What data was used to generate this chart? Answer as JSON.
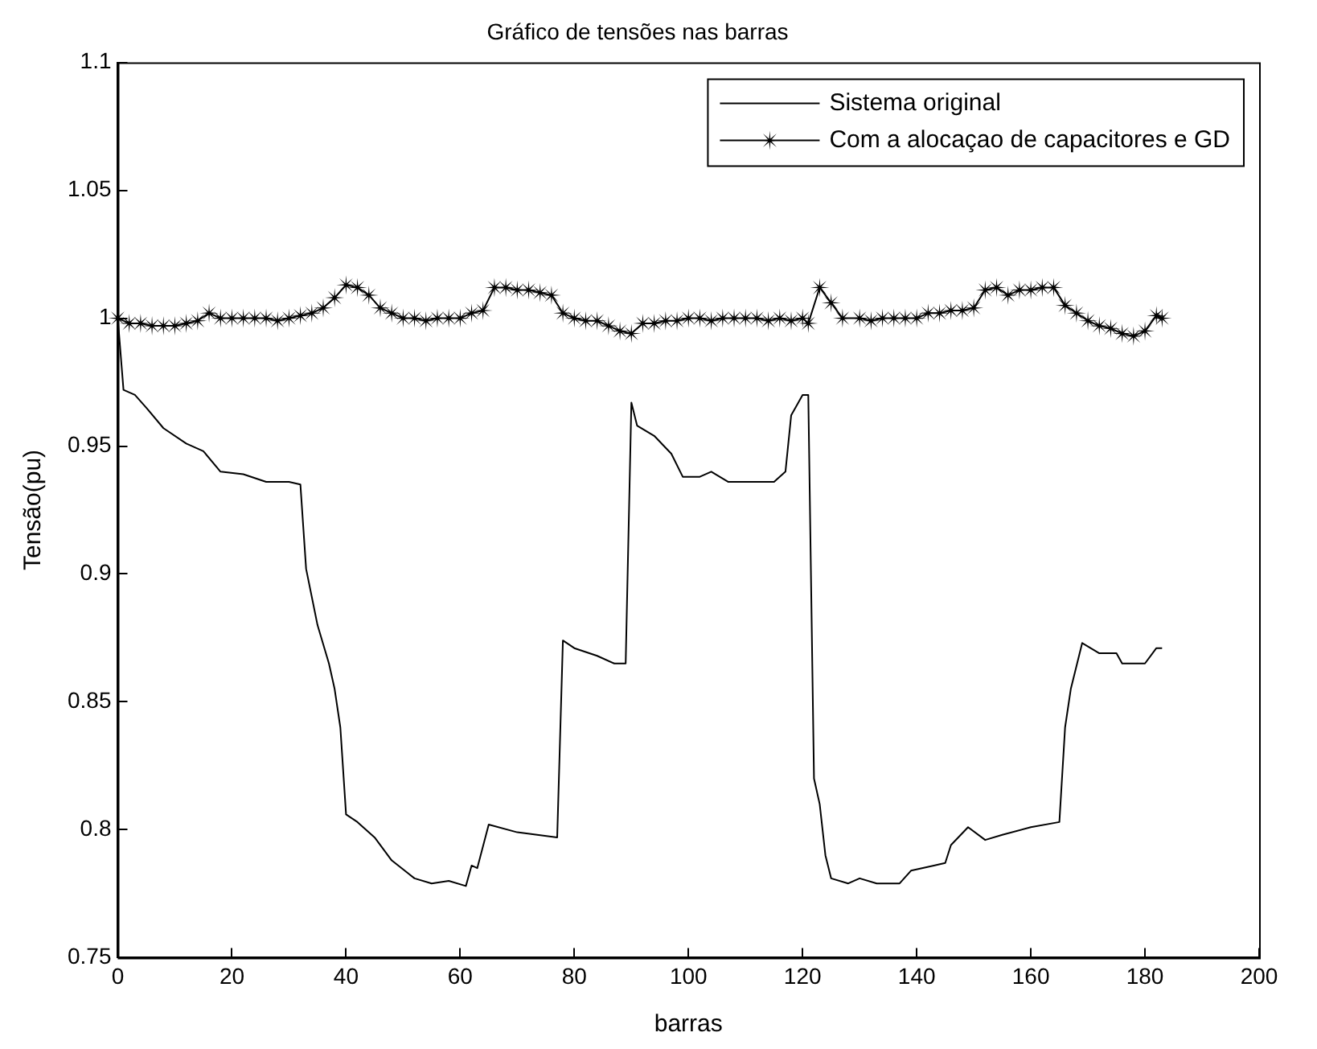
{
  "chart_data": {
    "type": "line",
    "title": "Gráfico de tensões nas barras",
    "xlabel": "barras",
    "ylabel": "Tensão(pu)",
    "xlim": [
      0,
      200
    ],
    "xticks": [
      0,
      20,
      40,
      60,
      80,
      100,
      120,
      140,
      160,
      180,
      200
    ],
    "ylim": [
      0.75,
      1.1
    ],
    "yticks": [
      0.75,
      0.8,
      0.85,
      0.9,
      0.95,
      1,
      1.05,
      1.1
    ],
    "grid": false,
    "legend": "top right",
    "line_style": "solid",
    "series": [
      {
        "name": "Sistema original",
        "color": "#000000",
        "marker": "none",
        "x": [
          0,
          1,
          3,
          5,
          8,
          12,
          15,
          18,
          22,
          26,
          30,
          32,
          33,
          35,
          37,
          38,
          39,
          40,
          42,
          45,
          48,
          52,
          55,
          58,
          61,
          62,
          63,
          65,
          70,
          77,
          78,
          80,
          84,
          87,
          89,
          90,
          91,
          94,
          97,
          99,
          102,
          104,
          107,
          112,
          115,
          117,
          118,
          120,
          121,
          122,
          123,
          124,
          125,
          128,
          130,
          133,
          137,
          139,
          143,
          145,
          146,
          149,
          152,
          155,
          160,
          165,
          166,
          167,
          169,
          172,
          175,
          176,
          180,
          182,
          183
        ],
        "values": [
          1.0,
          0.972,
          0.97,
          0.965,
          0.957,
          0.951,
          0.948,
          0.94,
          0.939,
          0.936,
          0.936,
          0.935,
          0.902,
          0.88,
          0.865,
          0.855,
          0.84,
          0.806,
          0.803,
          0.797,
          0.788,
          0.781,
          0.779,
          0.78,
          0.778,
          0.786,
          0.785,
          0.802,
          0.799,
          0.797,
          0.874,
          0.871,
          0.868,
          0.865,
          0.865,
          0.967,
          0.958,
          0.954,
          0.947,
          0.938,
          0.938,
          0.94,
          0.936,
          0.936,
          0.936,
          0.94,
          0.962,
          0.97,
          0.97,
          0.82,
          0.81,
          0.79,
          0.781,
          0.779,
          0.781,
          0.779,
          0.779,
          0.784,
          0.786,
          0.787,
          0.794,
          0.801,
          0.796,
          0.798,
          0.801,
          0.803,
          0.84,
          0.855,
          0.873,
          0.869,
          0.869,
          0.865,
          0.865,
          0.871,
          0.871
        ]
      },
      {
        "name": "Com a alocaçao de capacitores e GD",
        "color": "#000000",
        "marker": "star",
        "x": [
          0,
          2,
          4,
          6,
          8,
          10,
          12,
          14,
          16,
          18,
          20,
          22,
          24,
          26,
          28,
          30,
          32,
          34,
          36,
          38,
          40,
          42,
          44,
          46,
          48,
          50,
          52,
          54,
          56,
          58,
          60,
          62,
          64,
          66,
          68,
          70,
          72,
          74,
          76,
          78,
          80,
          82,
          84,
          86,
          88,
          90,
          92,
          94,
          96,
          98,
          100,
          102,
          104,
          106,
          108,
          110,
          112,
          114,
          116,
          118,
          120,
          121,
          123,
          125,
          127,
          130,
          132,
          134,
          136,
          138,
          140,
          142,
          144,
          146,
          148,
          150,
          152,
          154,
          156,
          158,
          160,
          162,
          164,
          166,
          168,
          170,
          172,
          174,
          176,
          178,
          180,
          182,
          183
        ],
        "values": [
          1.0,
          0.998,
          0.998,
          0.997,
          0.997,
          0.997,
          0.998,
          0.999,
          1.002,
          1.0,
          1.0,
          1.0,
          1.0,
          1.0,
          0.999,
          1.0,
          1.001,
          1.002,
          1.004,
          1.008,
          1.013,
          1.012,
          1.009,
          1.004,
          1.002,
          1.0,
          1.0,
          0.999,
          1.0,
          1.0,
          1.0,
          1.002,
          1.003,
          1.012,
          1.012,
          1.011,
          1.011,
          1.01,
          1.009,
          1.002,
          1.0,
          0.999,
          0.999,
          0.997,
          0.995,
          0.994,
          0.998,
          0.998,
          0.999,
          0.999,
          1.0,
          1.0,
          0.999,
          1.0,
          1.0,
          1.0,
          1.0,
          0.999,
          1.0,
          0.999,
          1.0,
          0.998,
          1.012,
          1.006,
          1.0,
          1.0,
          0.999,
          1.0,
          1.0,
          1.0,
          1.0,
          1.002,
          1.002,
          1.003,
          1.003,
          1.004,
          1.011,
          1.012,
          1.009,
          1.011,
          1.011,
          1.012,
          1.012,
          1.005,
          1.002,
          0.999,
          0.997,
          0.996,
          0.994,
          0.993,
          0.995,
          1.001,
          1.0
        ]
      }
    ]
  }
}
